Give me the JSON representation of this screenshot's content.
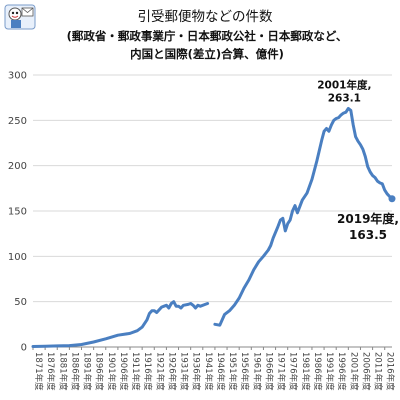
{
  "chart_data": {
    "type": "line",
    "title": "引受郵便物などの件数",
    "subtitle_lines": [
      "(郵政省・郵政事業庁・日本郵政公社・日本郵政など、",
      "内国と国際(差立)合算、億件)"
    ],
    "ylim": [
      0,
      300
    ],
    "yticks": [
      "0",
      "50",
      "100",
      "150",
      "200",
      "250",
      "300"
    ],
    "xlim": [
      1871,
      2019
    ],
    "xticks": [
      {
        "year": 1871,
        "label": "1871年度"
      },
      {
        "year": 1876,
        "label": "1876年度"
      },
      {
        "year": 1881,
        "label": "1881年度"
      },
      {
        "year": 1886,
        "label": "1886年度"
      },
      {
        "year": 1891,
        "label": "1891年度"
      },
      {
        "year": 1896,
        "label": "1896年度"
      },
      {
        "year": 1901,
        "label": "1901年度"
      },
      {
        "year": 1906,
        "label": "1906年度"
      },
      {
        "year": 1911,
        "label": "1911年度"
      },
      {
        "year": 1916,
        "label": "1916年度"
      },
      {
        "year": 1921,
        "label": "1921年度"
      },
      {
        "year": 1926,
        "label": "1926年度"
      },
      {
        "year": 1931,
        "label": "1931年度"
      },
      {
        "year": 1936,
        "label": "1936年度"
      },
      {
        "year": 1941,
        "label": "1941年度"
      },
      {
        "year": 1946,
        "label": "1946年度"
      },
      {
        "year": 1951,
        "label": "1951年度"
      },
      {
        "year": 1956,
        "label": "1956年度"
      },
      {
        "year": 1961,
        "label": "1961年度"
      },
      {
        "year": 1966,
        "label": "1966年度"
      },
      {
        "year": 1971,
        "label": "1971年度"
      },
      {
        "year": 1976,
        "label": "1976年度"
      },
      {
        "year": 1981,
        "label": "1981年度"
      },
      {
        "year": 1986,
        "label": "1986年度"
      },
      {
        "year": 1991,
        "label": "1991年度"
      },
      {
        "year": 1996,
        "label": "1996年度"
      },
      {
        "year": 2001,
        "label": "2001年度"
      },
      {
        "year": 2006,
        "label": "2006年度"
      },
      {
        "year": 2011,
        "label": "2011年度"
      },
      {
        "year": 2016,
        "label": "2016年度"
      }
    ],
    "grid": true,
    "color": "#4a7fc1",
    "series_segments": [
      [
        [
          1871,
          0.6
        ],
        [
          1876,
          0.8
        ],
        [
          1881,
          1.2
        ],
        [
          1886,
          1.5
        ],
        [
          1891,
          2.8
        ],
        [
          1896,
          5.5
        ],
        [
          1901,
          9
        ],
        [
          1906,
          13
        ],
        [
          1911,
          15
        ],
        [
          1914,
          18
        ],
        [
          1916,
          22
        ],
        [
          1918,
          30
        ],
        [
          1919,
          37
        ],
        [
          1920,
          40
        ],
        [
          1921,
          40
        ],
        [
          1922,
          38
        ],
        [
          1924,
          44
        ],
        [
          1925,
          45
        ],
        [
          1926,
          46
        ],
        [
          1927,
          43
        ],
        [
          1928,
          48
        ],
        [
          1929,
          50
        ],
        [
          1930,
          45
        ],
        [
          1931,
          45
        ],
        [
          1932,
          43
        ],
        [
          1933,
          46
        ],
        [
          1935,
          47
        ],
        [
          1936,
          48
        ],
        [
          1937,
          46
        ],
        [
          1938,
          43
        ],
        [
          1939,
          46
        ],
        [
          1940,
          45
        ],
        [
          1942,
          47
        ],
        [
          1943,
          48
        ]
      ],
      [
        [
          1946,
          25
        ],
        [
          1948,
          24
        ],
        [
          1950,
          36
        ],
        [
          1952,
          40
        ],
        [
          1954,
          46
        ],
        [
          1956,
          54
        ],
        [
          1958,
          65
        ],
        [
          1960,
          74
        ],
        [
          1962,
          85
        ],
        [
          1964,
          94
        ],
        [
          1966,
          100
        ],
        [
          1968,
          107
        ],
        [
          1969,
          112
        ],
        [
          1970,
          120
        ],
        [
          1972,
          133
        ],
        [
          1973,
          140
        ],
        [
          1974,
          142
        ],
        [
          1975,
          128
        ],
        [
          1976,
          136
        ],
        [
          1977,
          140
        ],
        [
          1978,
          150
        ],
        [
          1979,
          156
        ],
        [
          1980,
          148
        ],
        [
          1982,
          162
        ],
        [
          1984,
          170
        ],
        [
          1986,
          185
        ],
        [
          1988,
          205
        ],
        [
          1990,
          228
        ],
        [
          1991,
          238
        ],
        [
          1992,
          241
        ],
        [
          1993,
          238
        ],
        [
          1994,
          245
        ],
        [
          1995,
          250
        ],
        [
          1996,
          252
        ],
        [
          1997,
          253
        ],
        [
          1998,
          256
        ],
        [
          1999,
          258
        ],
        [
          2000,
          259
        ],
        [
          2001,
          263.1
        ],
        [
          2002,
          261
        ],
        [
          2003,
          245
        ],
        [
          2004,
          232
        ],
        [
          2005,
          227
        ],
        [
          2006,
          223
        ],
        [
          2007,
          218
        ],
        [
          2008,
          210
        ],
        [
          2009,
          199
        ],
        [
          2010,
          193
        ],
        [
          2011,
          189
        ],
        [
          2012,
          187
        ],
        [
          2013,
          183
        ],
        [
          2014,
          181
        ],
        [
          2015,
          180
        ],
        [
          2016,
          173
        ],
        [
          2017,
          169
        ],
        [
          2018,
          166
        ],
        [
          2019,
          163.5
        ]
      ]
    ],
    "annotations": [
      {
        "year": 2001,
        "value": 263.1,
        "label_line1": "2001年度,",
        "label_line2": "263.1"
      },
      {
        "year": 2019,
        "value": 163.5,
        "label_line1": "2019年度,",
        "label_line2": "163.5"
      }
    ]
  }
}
